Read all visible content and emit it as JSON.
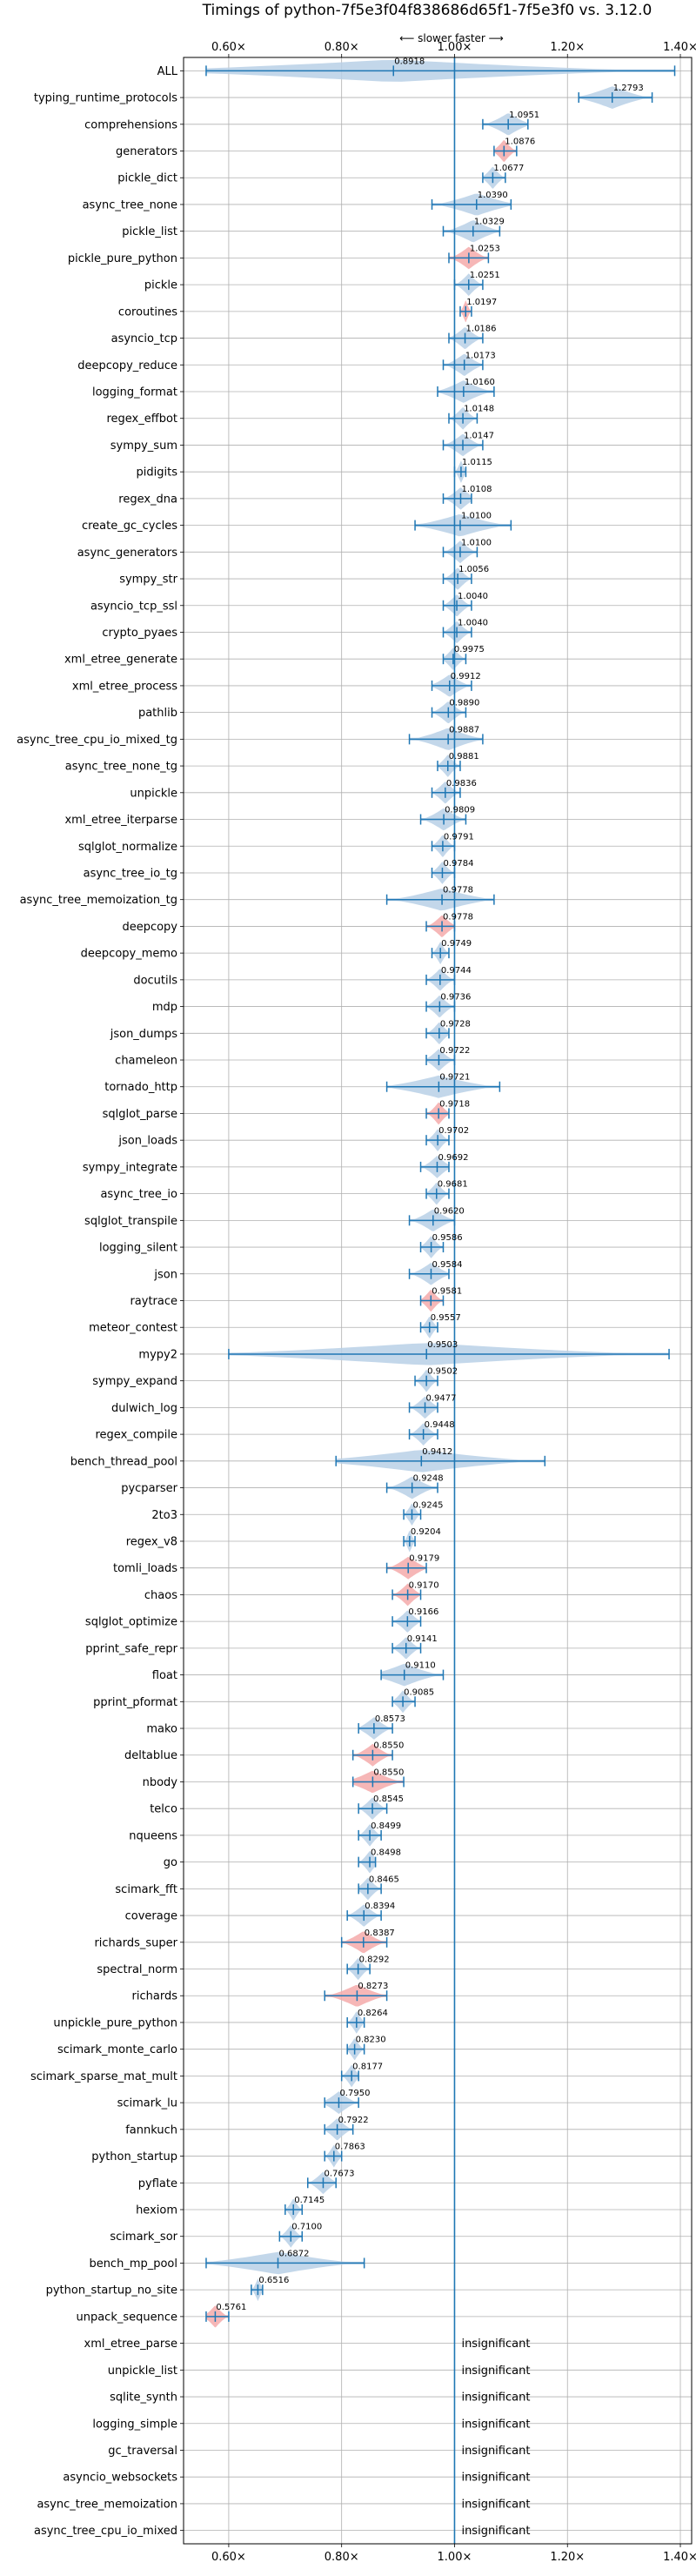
{
  "chart_data": {
    "type": "violin",
    "title": "Timings of python-7f5e3f04f838686d65f1-7f5e3f0 vs. 3.12.0",
    "direction_hint": "⟵ slower  faster ⟶",
    "xlim": [
      0.52,
      1.42
    ],
    "reference_line": 1.0,
    "grid": true,
    "x_ticks": [
      {
        "value": 0.6,
        "label": "0.60×"
      },
      {
        "value": 0.8,
        "label": "0.80×"
      },
      {
        "value": 1.0,
        "label": "1.00×"
      },
      {
        "value": 1.2,
        "label": "1.20×"
      },
      {
        "value": 1.4,
        "label": "1.40×"
      }
    ],
    "colors": {
      "normal": "#1f77b4",
      "violin": "#b8d0e6",
      "highlight": "#f4aaaa"
    },
    "benchmarks": [
      {
        "name": "ALL",
        "mean": 0.8918,
        "min": 0.56,
        "max": 1.39,
        "label": "0.8918",
        "highlight": false
      },
      {
        "name": "typing_runtime_protocols",
        "mean": 1.2793,
        "min": 1.22,
        "max": 1.35,
        "label": "1.2793",
        "highlight": false
      },
      {
        "name": "comprehensions",
        "mean": 1.0951,
        "min": 1.05,
        "max": 1.13,
        "label": "1.0951",
        "highlight": false
      },
      {
        "name": "generators",
        "mean": 1.0876,
        "min": 1.07,
        "max": 1.11,
        "label": "1.0876",
        "highlight": true
      },
      {
        "name": "pickle_dict",
        "mean": 1.0677,
        "min": 1.05,
        "max": 1.09,
        "label": "1.0677",
        "highlight": false
      },
      {
        "name": "async_tree_none",
        "mean": 1.039,
        "min": 0.96,
        "max": 1.1,
        "label": "1.0390",
        "highlight": false
      },
      {
        "name": "pickle_list",
        "mean": 1.0329,
        "min": 0.98,
        "max": 1.08,
        "label": "1.0329",
        "highlight": false
      },
      {
        "name": "pickle_pure_python",
        "mean": 1.0253,
        "min": 0.99,
        "max": 1.06,
        "label": "1.0253",
        "highlight": true
      },
      {
        "name": "pickle",
        "mean": 1.0251,
        "min": 1.0,
        "max": 1.05,
        "label": "1.0251",
        "highlight": false
      },
      {
        "name": "coroutines",
        "mean": 1.0197,
        "min": 1.01,
        "max": 1.03,
        "label": "1.0197",
        "highlight": true
      },
      {
        "name": "asyncio_tcp",
        "mean": 1.0186,
        "min": 0.99,
        "max": 1.05,
        "label": "1.0186",
        "highlight": false
      },
      {
        "name": "deepcopy_reduce",
        "mean": 1.0173,
        "min": 0.98,
        "max": 1.05,
        "label": "1.0173",
        "highlight": false
      },
      {
        "name": "logging_format",
        "mean": 1.016,
        "min": 0.97,
        "max": 1.07,
        "label": "1.0160",
        "highlight": false
      },
      {
        "name": "regex_effbot",
        "mean": 1.0148,
        "min": 0.99,
        "max": 1.04,
        "label": "1.0148",
        "highlight": false
      },
      {
        "name": "sympy_sum",
        "mean": 1.0147,
        "min": 0.98,
        "max": 1.05,
        "label": "1.0147",
        "highlight": false
      },
      {
        "name": "pidigits",
        "mean": 1.0115,
        "min": 1.0,
        "max": 1.02,
        "label": "1.0115",
        "highlight": false
      },
      {
        "name": "regex_dna",
        "mean": 1.0108,
        "min": 0.98,
        "max": 1.03,
        "label": "1.0108",
        "highlight": false
      },
      {
        "name": "create_gc_cycles",
        "mean": 1.01,
        "min": 0.93,
        "max": 1.1,
        "label": "1.0100",
        "highlight": false
      },
      {
        "name": "async_generators",
        "mean": 1.01,
        "min": 0.98,
        "max": 1.04,
        "label": "1.0100",
        "highlight": false
      },
      {
        "name": "sympy_str",
        "mean": 1.0056,
        "min": 0.98,
        "max": 1.03,
        "label": "1.0056",
        "highlight": false
      },
      {
        "name": "asyncio_tcp_ssl",
        "mean": 1.004,
        "min": 0.98,
        "max": 1.03,
        "label": "1.0040",
        "highlight": false
      },
      {
        "name": "crypto_pyaes",
        "mean": 1.004,
        "min": 0.98,
        "max": 1.03,
        "label": "1.0040",
        "highlight": false
      },
      {
        "name": "xml_etree_generate",
        "mean": 0.9975,
        "min": 0.98,
        "max": 1.02,
        "label": "0.9975",
        "highlight": false
      },
      {
        "name": "xml_etree_process",
        "mean": 0.9912,
        "min": 0.96,
        "max": 1.03,
        "label": "0.9912",
        "highlight": false
      },
      {
        "name": "pathlib",
        "mean": 0.989,
        "min": 0.96,
        "max": 1.02,
        "label": "0.9890",
        "highlight": false
      },
      {
        "name": "async_tree_cpu_io_mixed_tg",
        "mean": 0.9887,
        "min": 0.92,
        "max": 1.05,
        "label": "0.9887",
        "highlight": false
      },
      {
        "name": "async_tree_none_tg",
        "mean": 0.9881,
        "min": 0.97,
        "max": 1.01,
        "label": "0.9881",
        "highlight": false
      },
      {
        "name": "unpickle",
        "mean": 0.9836,
        "min": 0.96,
        "max": 1.01,
        "label": "0.9836",
        "highlight": false
      },
      {
        "name": "xml_etree_iterparse",
        "mean": 0.9809,
        "min": 0.94,
        "max": 1.02,
        "label": "0.9809",
        "highlight": false
      },
      {
        "name": "sqlglot_normalize",
        "mean": 0.9791,
        "min": 0.96,
        "max": 1.0,
        "label": "0.9791",
        "highlight": false
      },
      {
        "name": "async_tree_io_tg",
        "mean": 0.9784,
        "min": 0.96,
        "max": 1.0,
        "label": "0.9784",
        "highlight": false
      },
      {
        "name": "async_tree_memoization_tg",
        "mean": 0.9778,
        "min": 0.88,
        "max": 1.07,
        "label": "0.9778",
        "highlight": false
      },
      {
        "name": "deepcopy",
        "mean": 0.9778,
        "min": 0.95,
        "max": 1.0,
        "label": "0.9778",
        "highlight": true
      },
      {
        "name": "deepcopy_memo",
        "mean": 0.9749,
        "min": 0.96,
        "max": 0.99,
        "label": "0.9749",
        "highlight": false
      },
      {
        "name": "docutils",
        "mean": 0.9744,
        "min": 0.95,
        "max": 1.0,
        "label": "0.9744",
        "highlight": false
      },
      {
        "name": "mdp",
        "mean": 0.9736,
        "min": 0.95,
        "max": 1.0,
        "label": "0.9736",
        "highlight": false
      },
      {
        "name": "json_dumps",
        "mean": 0.9728,
        "min": 0.95,
        "max": 0.99,
        "label": "0.9728",
        "highlight": false
      },
      {
        "name": "chameleon",
        "mean": 0.9722,
        "min": 0.95,
        "max": 1.0,
        "label": "0.9722",
        "highlight": false
      },
      {
        "name": "tornado_http",
        "mean": 0.9721,
        "min": 0.88,
        "max": 1.08,
        "label": "0.9721",
        "highlight": false
      },
      {
        "name": "sqlglot_parse",
        "mean": 0.9718,
        "min": 0.95,
        "max": 0.99,
        "label": "0.9718",
        "highlight": true
      },
      {
        "name": "json_loads",
        "mean": 0.9702,
        "min": 0.95,
        "max": 0.99,
        "label": "0.9702",
        "highlight": false
      },
      {
        "name": "sympy_integrate",
        "mean": 0.9692,
        "min": 0.94,
        "max": 0.99,
        "label": "0.9692",
        "highlight": false
      },
      {
        "name": "async_tree_io",
        "mean": 0.9681,
        "min": 0.95,
        "max": 0.99,
        "label": "0.9681",
        "highlight": false
      },
      {
        "name": "sqlglot_transpile",
        "mean": 0.962,
        "min": 0.92,
        "max": 1.0,
        "label": "0.9620",
        "highlight": false
      },
      {
        "name": "logging_silent",
        "mean": 0.9586,
        "min": 0.94,
        "max": 0.98,
        "label": "0.9586",
        "highlight": false
      },
      {
        "name": "json",
        "mean": 0.9584,
        "min": 0.92,
        "max": 0.99,
        "label": "0.9584",
        "highlight": false
      },
      {
        "name": "raytrace",
        "mean": 0.9581,
        "min": 0.94,
        "max": 0.98,
        "label": "0.9581",
        "highlight": true
      },
      {
        "name": "meteor_contest",
        "mean": 0.9557,
        "min": 0.94,
        "max": 0.97,
        "label": "0.9557",
        "highlight": false
      },
      {
        "name": "mypy2",
        "mean": 0.9503,
        "min": 0.6,
        "max": 1.38,
        "label": "0.9503",
        "highlight": false
      },
      {
        "name": "sympy_expand",
        "mean": 0.9502,
        "min": 0.93,
        "max": 0.97,
        "label": "0.9502",
        "highlight": false
      },
      {
        "name": "dulwich_log",
        "mean": 0.9477,
        "min": 0.92,
        "max": 0.97,
        "label": "0.9477",
        "highlight": false
      },
      {
        "name": "regex_compile",
        "mean": 0.9448,
        "min": 0.92,
        "max": 0.97,
        "label": "0.9448",
        "highlight": false
      },
      {
        "name": "bench_thread_pool",
        "mean": 0.9412,
        "min": 0.79,
        "max": 1.16,
        "label": "0.9412",
        "highlight": false
      },
      {
        "name": "pycparser",
        "mean": 0.9248,
        "min": 0.88,
        "max": 0.97,
        "label": "0.9248",
        "highlight": false
      },
      {
        "name": "2to3",
        "mean": 0.9245,
        "min": 0.91,
        "max": 0.94,
        "label": "0.9245",
        "highlight": false
      },
      {
        "name": "regex_v8",
        "mean": 0.9204,
        "min": 0.91,
        "max": 0.93,
        "label": "0.9204",
        "highlight": false
      },
      {
        "name": "tomli_loads",
        "mean": 0.9179,
        "min": 0.88,
        "max": 0.95,
        "label": "0.9179",
        "highlight": true
      },
      {
        "name": "chaos",
        "mean": 0.917,
        "min": 0.89,
        "max": 0.94,
        "label": "0.9170",
        "highlight": true
      },
      {
        "name": "sqlglot_optimize",
        "mean": 0.9166,
        "min": 0.89,
        "max": 0.94,
        "label": "0.9166",
        "highlight": false
      },
      {
        "name": "pprint_safe_repr",
        "mean": 0.9141,
        "min": 0.89,
        "max": 0.94,
        "label": "0.9141",
        "highlight": false
      },
      {
        "name": "float",
        "mean": 0.911,
        "min": 0.87,
        "max": 0.98,
        "label": "0.9110",
        "highlight": false
      },
      {
        "name": "pprint_pformat",
        "mean": 0.9085,
        "min": 0.89,
        "max": 0.93,
        "label": "0.9085",
        "highlight": false
      },
      {
        "name": "mako",
        "mean": 0.8573,
        "min": 0.83,
        "max": 0.89,
        "label": "0.8573",
        "highlight": false
      },
      {
        "name": "deltablue",
        "mean": 0.855,
        "min": 0.82,
        "max": 0.89,
        "label": "0.8550",
        "highlight": true
      },
      {
        "name": "nbody",
        "mean": 0.855,
        "min": 0.82,
        "max": 0.91,
        "label": "0.8550",
        "highlight": true
      },
      {
        "name": "telco",
        "mean": 0.8545,
        "min": 0.83,
        "max": 0.88,
        "label": "0.8545",
        "highlight": false
      },
      {
        "name": "nqueens",
        "mean": 0.8499,
        "min": 0.83,
        "max": 0.87,
        "label": "0.8499",
        "highlight": false
      },
      {
        "name": "go",
        "mean": 0.8498,
        "min": 0.83,
        "max": 0.86,
        "label": "0.8498",
        "highlight": false
      },
      {
        "name": "scimark_fft",
        "mean": 0.8465,
        "min": 0.83,
        "max": 0.87,
        "label": "0.8465",
        "highlight": false
      },
      {
        "name": "coverage",
        "mean": 0.8394,
        "min": 0.81,
        "max": 0.87,
        "label": "0.8394",
        "highlight": false
      },
      {
        "name": "richards_super",
        "mean": 0.8387,
        "min": 0.8,
        "max": 0.88,
        "label": "0.8387",
        "highlight": true
      },
      {
        "name": "spectral_norm",
        "mean": 0.8292,
        "min": 0.81,
        "max": 0.85,
        "label": "0.8292",
        "highlight": false
      },
      {
        "name": "richards",
        "mean": 0.8273,
        "min": 0.77,
        "max": 0.88,
        "label": "0.8273",
        "highlight": true
      },
      {
        "name": "unpickle_pure_python",
        "mean": 0.8264,
        "min": 0.81,
        "max": 0.84,
        "label": "0.8264",
        "highlight": false
      },
      {
        "name": "scimark_monte_carlo",
        "mean": 0.823,
        "min": 0.81,
        "max": 0.84,
        "label": "0.8230",
        "highlight": false
      },
      {
        "name": "scimark_sparse_mat_mult",
        "mean": 0.8177,
        "min": 0.8,
        "max": 0.83,
        "label": "0.8177",
        "highlight": false
      },
      {
        "name": "scimark_lu",
        "mean": 0.795,
        "min": 0.77,
        "max": 0.83,
        "label": "0.7950",
        "highlight": false
      },
      {
        "name": "fannkuch",
        "mean": 0.7922,
        "min": 0.77,
        "max": 0.82,
        "label": "0.7922",
        "highlight": false
      },
      {
        "name": "python_startup",
        "mean": 0.7863,
        "min": 0.77,
        "max": 0.8,
        "label": "0.7863",
        "highlight": false
      },
      {
        "name": "pyflate",
        "mean": 0.7673,
        "min": 0.74,
        "max": 0.79,
        "label": "0.7673",
        "highlight": false
      },
      {
        "name": "hexiom",
        "mean": 0.7145,
        "min": 0.7,
        "max": 0.73,
        "label": "0.7145",
        "highlight": false
      },
      {
        "name": "scimark_sor",
        "mean": 0.71,
        "min": 0.69,
        "max": 0.73,
        "label": "0.7100",
        "highlight": false
      },
      {
        "name": "bench_mp_pool",
        "mean": 0.6872,
        "min": 0.56,
        "max": 0.84,
        "label": "0.6872",
        "highlight": false
      },
      {
        "name": "python_startup_no_site",
        "mean": 0.6516,
        "min": 0.64,
        "max": 0.66,
        "label": "0.6516",
        "highlight": false
      },
      {
        "name": "unpack_sequence",
        "mean": 0.5761,
        "min": 0.56,
        "max": 0.6,
        "label": "0.5761",
        "highlight": true
      },
      {
        "name": "xml_etree_parse",
        "mean": null,
        "label": "insignificant"
      },
      {
        "name": "unpickle_list",
        "mean": null,
        "label": "insignificant"
      },
      {
        "name": "sqlite_synth",
        "mean": null,
        "label": "insignificant"
      },
      {
        "name": "logging_simple",
        "mean": null,
        "label": "insignificant"
      },
      {
        "name": "gc_traversal",
        "mean": null,
        "label": "insignificant"
      },
      {
        "name": "asyncio_websockets",
        "mean": null,
        "label": "insignificant"
      },
      {
        "name": "async_tree_memoization",
        "mean": null,
        "label": "insignificant"
      },
      {
        "name": "async_tree_cpu_io_mixed",
        "mean": null,
        "label": "insignificant"
      }
    ]
  }
}
